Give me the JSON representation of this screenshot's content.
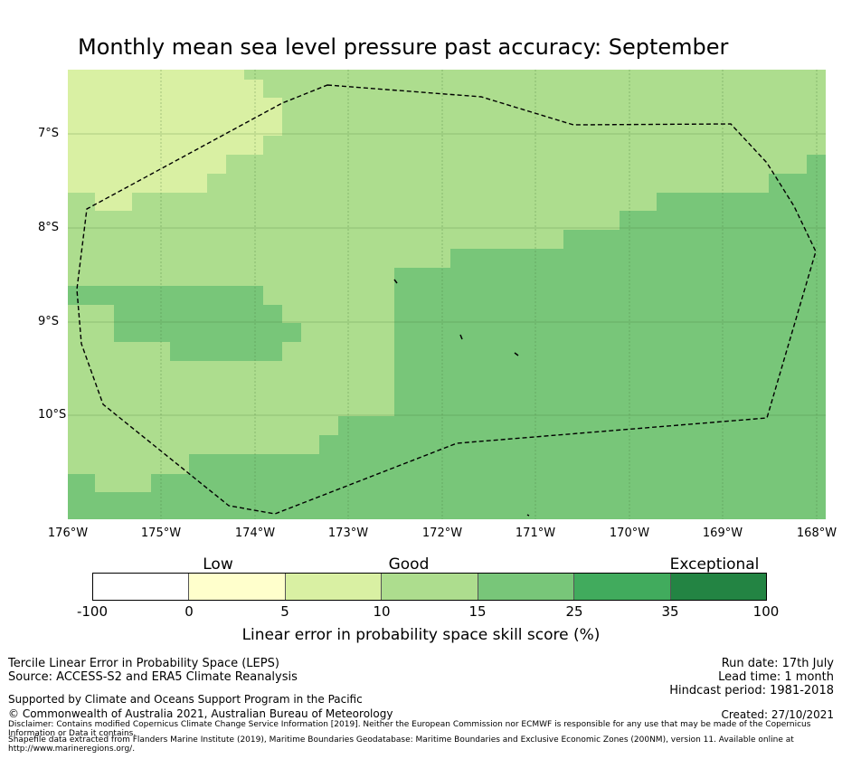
{
  "title": "Monthly mean sea level pressure past accuracy: September",
  "map": {
    "lat_labels": [
      "7°S",
      "8°S",
      "9°S",
      "10°S"
    ],
    "lon_labels": [
      "176°W",
      "175°W",
      "174°W",
      "173°W",
      "172°W",
      "171°W",
      "170°W",
      "169°W",
      "168°W"
    ],
    "lon_range": [
      "176°W",
      "168°W"
    ],
    "lat_range": [
      "6.3°S",
      "11.1°S"
    ],
    "boundary_style": "dashed black line (Exclusive Economic Zone)",
    "grid": true
  },
  "colorbar": {
    "categories": [
      "Low",
      "Good",
      "Exceptional"
    ],
    "ticks": [
      "-100",
      "0",
      "5",
      "10",
      "15",
      "25",
      "35",
      "100"
    ],
    "colors": [
      "#ffffff",
      "#ffffcc",
      "#d9f0a3",
      "#addd8e",
      "#78c679",
      "#41ab5d",
      "#238443"
    ],
    "label": "Linear error in probability space skill score (%)"
  },
  "footer": {
    "method": "Tercile Linear Error in Probability Space (LEPS)",
    "source": "Source: ACCESS-S2 and ERA5 Climate Reanalysis",
    "support": "Supported by Climate and Oceans Support Program in the Pacific",
    "copyright": "© Commonwealth of Australia 2021, Australian Bureau of Meteorology",
    "disclaimer": "Disclaimer: Contains modified Copernicus Climate Change Service Information [2019]. Neither the European Commission nor ECMWF is responsible for any use that may be made of the Copernicus Information or Data it contains.",
    "shapefile": "Shapefile data extracted from Flanders Marine Institute (2019), Maritime Boundaries Geodatabase: Maritime Boundaries and Exclusive Economic Zones (200NM), version 11. Available online at http://www.marineregions.org/.",
    "run_date": "Run date: 17th July",
    "lead_time": "Lead time: 1 month",
    "hindcast": "Hindcast period: 1981-2018",
    "created": "Created: 27/10/2021"
  }
}
